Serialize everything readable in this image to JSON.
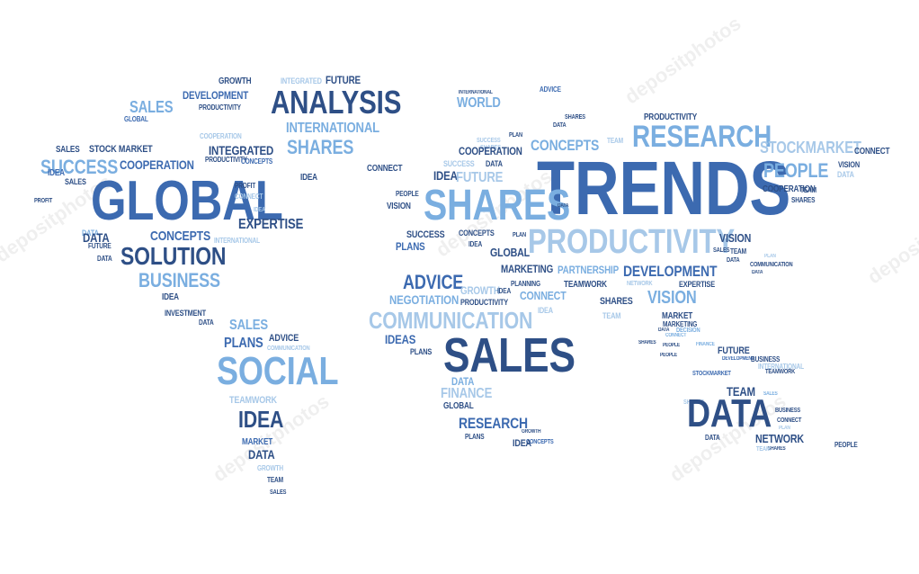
{
  "image": {
    "description_colors": {
      "dark": "#2e4f86",
      "mid": "#3c6ab0",
      "light": "#7aaee0",
      "pale": "#a7c8e8"
    },
    "watermark_text": "depositphotos",
    "words": [
      {
        "t": "GROWTH",
        "c": "dark"
      },
      {
        "t": "INTEGRATED",
        "c": "pale"
      },
      {
        "t": "FUTURE",
        "c": "dark"
      },
      {
        "t": "DEVELOPMENT",
        "c": "mid"
      },
      {
        "t": "ANALYSIS",
        "c": "dark"
      },
      {
        "t": "SALES",
        "c": "light"
      },
      {
        "t": "PRODUCTIVITY",
        "c": "dark"
      },
      {
        "t": "INTERNATIONAL",
        "c": "light"
      },
      {
        "t": "GLOBAL",
        "c": "mid"
      },
      {
        "t": "COOPERATION",
        "c": "pale"
      },
      {
        "t": "SHARES",
        "c": "light"
      },
      {
        "t": "SALES",
        "c": "dark"
      },
      {
        "t": "STOCK MARKET",
        "c": "dark"
      },
      {
        "t": "INTEGRATED",
        "c": "dark"
      },
      {
        "t": "PRODUCTIVITY",
        "c": "dark"
      },
      {
        "t": "SUCCESS",
        "c": "light"
      },
      {
        "t": "COOPERATION",
        "c": "mid"
      },
      {
        "t": "CONCEPTS",
        "c": "mid"
      },
      {
        "t": "IDEA",
        "c": "mid"
      },
      {
        "t": "SALES",
        "c": "dark"
      },
      {
        "t": "CONNECT",
        "c": "dark"
      },
      {
        "t": "IDEA",
        "c": "dark"
      },
      {
        "t": "PROFIT",
        "c": "dark"
      },
      {
        "t": "GLOBAL",
        "c": "mid"
      },
      {
        "t": "PROFIT",
        "c": "dark"
      },
      {
        "t": "CONNECT",
        "c": "pale"
      },
      {
        "t": "IDEA",
        "c": "pale"
      },
      {
        "t": "EXPERTISE",
        "c": "dark"
      },
      {
        "t": "DATA",
        "c": "light"
      },
      {
        "t": "DATA",
        "c": "dark"
      },
      {
        "t": "CONCEPTS",
        "c": "mid"
      },
      {
        "t": "INTERNATIONAL",
        "c": "pale"
      },
      {
        "t": "FUTURE",
        "c": "dark"
      },
      {
        "t": "SOLUTION",
        "c": "dark"
      },
      {
        "t": "DATA",
        "c": "dark"
      },
      {
        "t": "BUSINESS",
        "c": "light"
      },
      {
        "t": "IDEA",
        "c": "dark"
      },
      {
        "t": "INVESTMENT",
        "c": "dark"
      },
      {
        "t": "DATA",
        "c": "dark"
      },
      {
        "t": "SALES",
        "c": "light"
      },
      {
        "t": "ADVICE",
        "c": "dark"
      },
      {
        "t": "PLANS",
        "c": "mid"
      },
      {
        "t": "COMMUNICATION",
        "c": "pale"
      },
      {
        "t": "SOCIAL",
        "c": "light"
      },
      {
        "t": "TEAMWORK",
        "c": "pale"
      },
      {
        "t": "IDEA",
        "c": "dark"
      },
      {
        "t": "MARKET",
        "c": "mid"
      },
      {
        "t": "DATA",
        "c": "dark"
      },
      {
        "t": "GROWTH",
        "c": "pale"
      },
      {
        "t": "TEAM",
        "c": "dark"
      },
      {
        "t": "SALES",
        "c": "dark"
      },
      {
        "t": "INTERNATIONAL",
        "c": "dark"
      },
      {
        "t": "WORLD",
        "c": "light"
      },
      {
        "t": "ADVICE",
        "c": "mid"
      },
      {
        "t": "SHARES",
        "c": "dark"
      },
      {
        "t": "SUCCESS",
        "c": "pale"
      },
      {
        "t": "DATA",
        "c": "dark"
      },
      {
        "t": "PRODUCTIVITY",
        "c": "dark"
      },
      {
        "t": "RESEARCH",
        "c": "light"
      },
      {
        "t": "SHARES",
        "c": "pale"
      },
      {
        "t": "PLAN",
        "c": "dark"
      },
      {
        "t": "CONCEPTS",
        "c": "light"
      },
      {
        "t": "TEAM",
        "c": "pale"
      },
      {
        "t": "STOCKMARKET",
        "c": "pale"
      },
      {
        "t": "CONNECT",
        "c": "dark"
      },
      {
        "t": "COOPERATION",
        "c": "dark"
      },
      {
        "t": "SUCCESS",
        "c": "pale"
      },
      {
        "t": "DATA",
        "c": "dark"
      },
      {
        "t": "IDEA",
        "c": "dark"
      },
      {
        "t": "FUTURE",
        "c": "pale"
      },
      {
        "t": "TRENDS",
        "c": "mid"
      },
      {
        "t": "PEOPLE",
        "c": "light"
      },
      {
        "t": "VISION",
        "c": "dark"
      },
      {
        "t": "DATA",
        "c": "pale"
      },
      {
        "t": "COOPERATION",
        "c": "dark"
      },
      {
        "t": "TEAM",
        "c": "dark"
      },
      {
        "t": "SHARES",
        "c": "dark"
      },
      {
        "t": "PEOPLE",
        "c": "dark"
      },
      {
        "t": "SHARES",
        "c": "light"
      },
      {
        "t": "VISION",
        "c": "dark"
      },
      {
        "t": "DATA",
        "c": "dark"
      },
      {
        "t": "SUCCESS",
        "c": "dark"
      },
      {
        "t": "CONCEPTS",
        "c": "dark"
      },
      {
        "t": "PLAN",
        "c": "dark"
      },
      {
        "t": "PLANS",
        "c": "mid"
      },
      {
        "t": "IDEA",
        "c": "dark"
      },
      {
        "t": "PRODUCTIVITY",
        "c": "pale"
      },
      {
        "t": "VISION",
        "c": "dark"
      },
      {
        "t": "SALES",
        "c": "dark"
      },
      {
        "t": "DATA",
        "c": "dark"
      },
      {
        "t": "TEAM",
        "c": "dark"
      },
      {
        "t": "PLAN",
        "c": "pale"
      },
      {
        "t": "GLOBAL",
        "c": "dark"
      },
      {
        "t": "COMMUNICATION",
        "c": "dark"
      },
      {
        "t": "DATA",
        "c": "dark"
      },
      {
        "t": "ADVICE",
        "c": "mid"
      },
      {
        "t": "MARKETING",
        "c": "dark"
      },
      {
        "t": "PARTNERSHIP",
        "c": "light"
      },
      {
        "t": "DEVELOPMENT",
        "c": "mid"
      },
      {
        "t": "GROWTH",
        "c": "pale"
      },
      {
        "t": "PLANNING",
        "c": "dark"
      },
      {
        "t": "NETWORK",
        "c": "pale"
      },
      {
        "t": "IDEA",
        "c": "dark"
      },
      {
        "t": "EXPERTISE",
        "c": "dark"
      },
      {
        "t": "NEGOTIATION",
        "c": "light"
      },
      {
        "t": "PRODUCTIVITY",
        "c": "dark"
      },
      {
        "t": "CONNECT",
        "c": "light"
      },
      {
        "t": "TEAMWORK",
        "c": "dark"
      },
      {
        "t": "VISION",
        "c": "light"
      },
      {
        "t": "SHARES",
        "c": "dark"
      },
      {
        "t": "COMMUNICATION",
        "c": "pale"
      },
      {
        "t": "IDEA",
        "c": "pale"
      },
      {
        "t": "TEAM",
        "c": "pale"
      },
      {
        "t": "MARKET",
        "c": "dark"
      },
      {
        "t": "MARKETING",
        "c": "dark"
      },
      {
        "t": "IDEAS",
        "c": "mid"
      },
      {
        "t": "SALES",
        "c": "dark"
      },
      {
        "t": "DATA",
        "c": "dark"
      },
      {
        "t": "DECISION",
        "c": "light"
      },
      {
        "t": "PLANS",
        "c": "dark"
      },
      {
        "t": "CONNECT",
        "c": "light"
      },
      {
        "t": "PEOPLE",
        "c": "dark"
      },
      {
        "t": "SHARES",
        "c": "dark"
      },
      {
        "t": "FINANCE",
        "c": "light"
      },
      {
        "t": "PEOPLE",
        "c": "dark"
      },
      {
        "t": "FUTURE",
        "c": "dark"
      },
      {
        "t": "DEVELOPMENT",
        "c": "mid"
      },
      {
        "t": "BUSINESS",
        "c": "dark"
      },
      {
        "t": "INTERNATIONAL",
        "c": "pale"
      },
      {
        "t": "STOCKMARKET",
        "c": "mid"
      },
      {
        "t": "DATA",
        "c": "light"
      },
      {
        "t": "FINANCE",
        "c": "pale"
      },
      {
        "t": "TEAMWORK",
        "c": "dark"
      },
      {
        "t": "TEAM",
        "c": "dark"
      },
      {
        "t": "SALES",
        "c": "light"
      },
      {
        "t": "SHARES",
        "c": "pale"
      },
      {
        "t": "GLOBAL",
        "c": "dark"
      },
      {
        "t": "BUSINESS",
        "c": "dark"
      },
      {
        "t": "DATA",
        "c": "dark"
      },
      {
        "t": "CONNECT",
        "c": "dark"
      },
      {
        "t": "RESEARCH",
        "c": "mid"
      },
      {
        "t": "PLAN",
        "c": "pale"
      },
      {
        "t": "GROWTH",
        "c": "dark"
      },
      {
        "t": "NETWORK",
        "c": "dark"
      },
      {
        "t": "PLANS",
        "c": "dark"
      },
      {
        "t": "PEOPLE",
        "c": "dark"
      },
      {
        "t": "DATA",
        "c": "dark"
      },
      {
        "t": "SHARES",
        "c": "dark"
      },
      {
        "t": "CONCEPTS",
        "c": "mid"
      },
      {
        "t": "IDEA",
        "c": "dark"
      },
      {
        "t": "TEAM",
        "c": "pale"
      }
    ]
  }
}
